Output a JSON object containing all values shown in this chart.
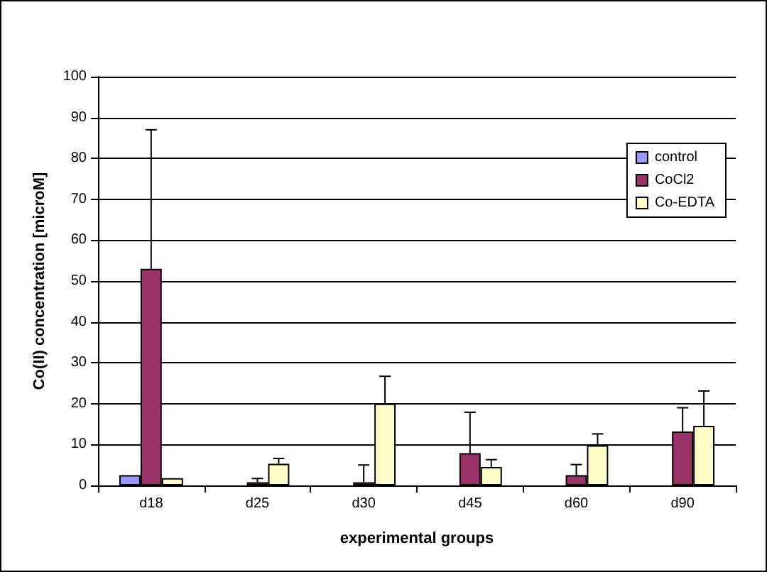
{
  "chart_data": {
    "type": "bar",
    "xlabel": "experimental groups",
    "ylabel": "Co(II) concentration [microM]",
    "categories": [
      "d18",
      "d25",
      "d30",
      "d45",
      "d60",
      "d90"
    ],
    "series": [
      {
        "name": "control",
        "color": "#9999ff",
        "values": [
          2.5,
          null,
          null,
          null,
          null,
          null
        ]
      },
      {
        "name": "CoCl2",
        "color": "#993366",
        "values": [
          53,
          0.8,
          0.8,
          7.9,
          2.5,
          13.2
        ],
        "errors": [
          [
            53,
            87
          ],
          [
            0.8,
            1.7
          ],
          [
            0.8,
            5
          ],
          [
            7.9,
            17.9
          ],
          [
            2.5,
            5.1
          ],
          [
            13.2,
            19
          ]
        ]
      },
      {
        "name": "Co-EDTA",
        "color": "#ffffcc",
        "values": [
          1.8,
          5.3,
          20,
          4.5,
          9.8,
          14.6
        ],
        "errors": [
          null,
          [
            5.3,
            6.6
          ],
          [
            20,
            26.7
          ],
          [
            4.5,
            6.3
          ],
          [
            9.8,
            12.6
          ],
          [
            14.6,
            23.1
          ]
        ]
      }
    ],
    "ylim": [
      0,
      100
    ],
    "yticks": [
      0,
      10,
      20,
      30,
      40,
      50,
      60,
      70,
      80,
      90,
      100
    ],
    "grid": "y",
    "legend": "top right"
  }
}
